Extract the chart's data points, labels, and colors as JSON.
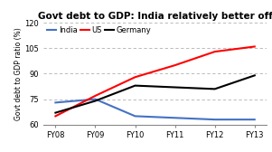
{
  "title": "Govt debt to GDP: India relatively better off",
  "ylabel": "Govt debt to GDP ratio (%)",
  "categories": [
    "FY08",
    "FY09",
    "FY10",
    "FY11",
    "FY12",
    "FY13"
  ],
  "series": [
    {
      "name": "India",
      "color": "#4472c4",
      "values": [
        73,
        75,
        65,
        64,
        63,
        63
      ]
    },
    {
      "name": "US",
      "color": "#ff0000",
      "values": [
        65,
        77,
        88,
        95,
        103,
        106
      ]
    },
    {
      "name": "Germany",
      "color": "#000000",
      "values": [
        67,
        74,
        83,
        82,
        81,
        89
      ]
    }
  ],
  "ylim": [
    60,
    120
  ],
  "yticks": [
    60,
    75,
    90,
    105,
    120
  ],
  "background_color": "#ffffff",
  "grid_color": "#b0b0b0",
  "title_fontsize": 7.5,
  "label_fontsize": 5.5,
  "tick_fontsize": 6,
  "legend_fontsize": 6
}
